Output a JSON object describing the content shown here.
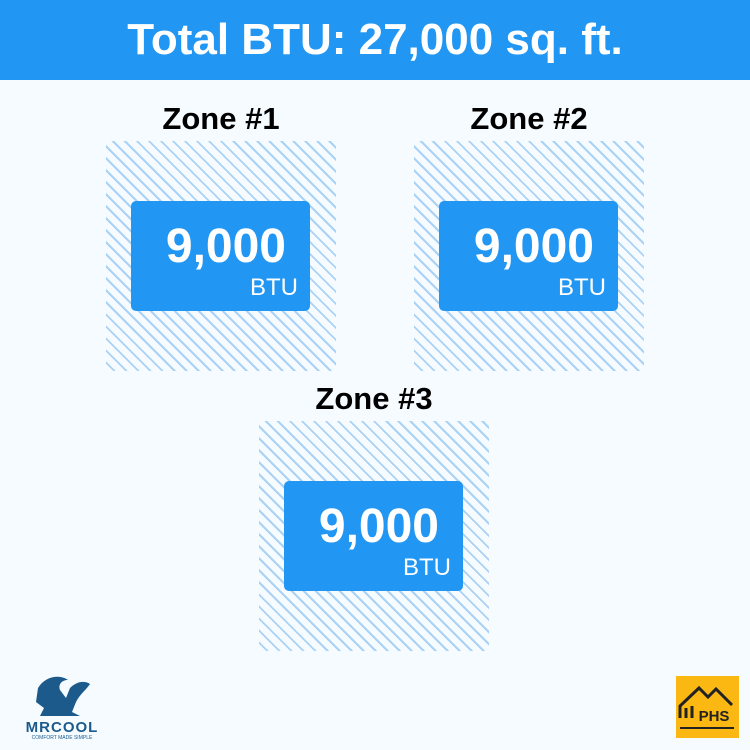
{
  "header": {
    "title": "Total BTU: 27,000 sq. ft."
  },
  "zones": [
    {
      "label": "Zone #1",
      "value": "9,000",
      "unit": "BTU"
    },
    {
      "label": "Zone #2",
      "value": "9,000",
      "unit": "BTU"
    },
    {
      "label": "Zone #3",
      "value": "9,000",
      "unit": "BTU"
    }
  ],
  "logos": {
    "left": "MRCOOL",
    "left_tagline": "COMFORT MADE SIMPLE",
    "right": "PHS"
  },
  "colors": {
    "accent": "#2196f3",
    "logo_yellow": "#fbb813",
    "logo_navy": "#1c5a8c"
  }
}
